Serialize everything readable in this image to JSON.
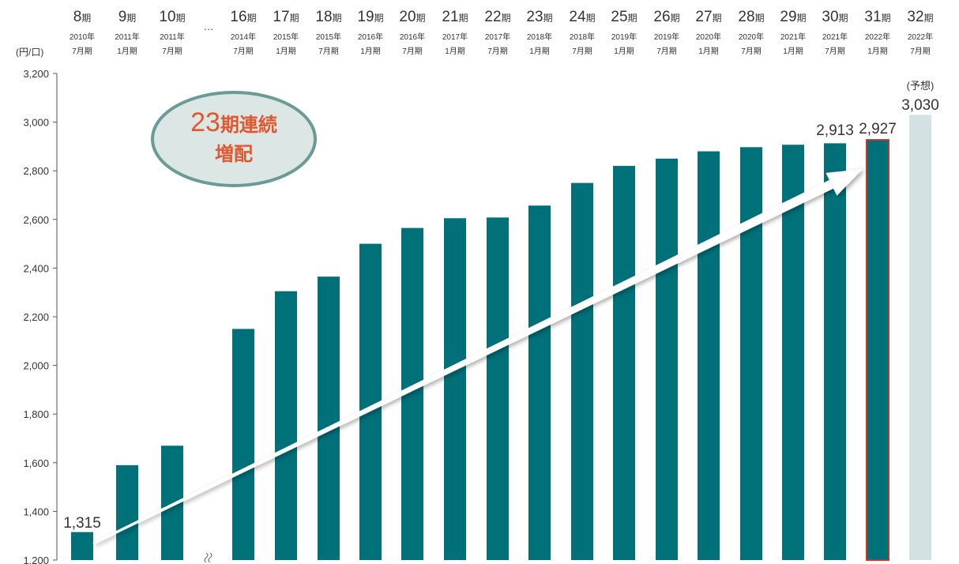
{
  "chart_data": {
    "type": "bar",
    "y_unit": "(円/口)",
    "ylim": [
      1200,
      3200
    ],
    "y_ticks": [
      "1,200",
      "1,400",
      "1,600",
      "1,800",
      "2,000",
      "2,200",
      "2,400",
      "2,600",
      "2,800",
      "3,000",
      "3,200"
    ],
    "y_tick_values": [
      1200,
      1400,
      1600,
      1800,
      2000,
      2200,
      2400,
      2600,
      2800,
      3000,
      3200
    ],
    "axis_break_ellipsis": "…",
    "categories": [
      {
        "num": "8",
        "suffix": "期",
        "year": "2010年",
        "month": "7月期"
      },
      {
        "num": "9",
        "suffix": "期",
        "year": "2011年",
        "month": "1月期"
      },
      {
        "num": "10",
        "suffix": "期",
        "year": "2011年",
        "month": "7月期"
      },
      {
        "num": "16",
        "suffix": "期",
        "year": "2014年",
        "month": "7月期"
      },
      {
        "num": "17",
        "suffix": "期",
        "year": "2015年",
        "month": "1月期"
      },
      {
        "num": "18",
        "suffix": "期",
        "year": "2015年",
        "month": "7月期"
      },
      {
        "num": "19",
        "suffix": "期",
        "year": "2016年",
        "month": "1月期"
      },
      {
        "num": "20",
        "suffix": "期",
        "year": "2016年",
        "month": "7月期"
      },
      {
        "num": "21",
        "suffix": "期",
        "year": "2017年",
        "month": "1月期"
      },
      {
        "num": "22",
        "suffix": "期",
        "year": "2017年",
        "month": "7月期"
      },
      {
        "num": "23",
        "suffix": "期",
        "year": "2018年",
        "month": "1月期"
      },
      {
        "num": "24",
        "suffix": "期",
        "year": "2018年",
        "month": "7月期"
      },
      {
        "num": "25",
        "suffix": "期",
        "year": "2019年",
        "month": "1月期"
      },
      {
        "num": "26",
        "suffix": "期",
        "year": "2019年",
        "month": "7月期"
      },
      {
        "num": "27",
        "suffix": "期",
        "year": "2020年",
        "month": "1月期"
      },
      {
        "num": "28",
        "suffix": "期",
        "year": "2020年",
        "month": "7月期"
      },
      {
        "num": "29",
        "suffix": "期",
        "year": "2021年",
        "month": "1月期"
      },
      {
        "num": "30",
        "suffix": "期",
        "year": "2021年",
        "month": "7月期"
      },
      {
        "num": "31",
        "suffix": "期",
        "year": "2022年",
        "month": "1月期"
      },
      {
        "num": "32",
        "suffix": "期",
        "year": "2022年",
        "month": "7月期"
      }
    ],
    "values": [
      1315,
      1590,
      1670,
      2150,
      2305,
      2365,
      2500,
      2565,
      2605,
      2608,
      2657,
      2750,
      2820,
      2850,
      2880,
      2897,
      2907,
      2913,
      2927,
      3030
    ],
    "data_labels": [
      {
        "index": 0,
        "text": "1,315"
      },
      {
        "index": 17,
        "text": "2,913"
      },
      {
        "index": 18,
        "text": "2,927"
      },
      {
        "index": 19,
        "text": "3,030"
      }
    ],
    "forecast_note": "(予想)",
    "highlight_index": 18,
    "forecast_index": 19,
    "annotation": {
      "number": "23",
      "text": "期連続",
      "line2": "増配"
    },
    "colors": {
      "bar": "#007079",
      "forecast_bar": "#d2e2e2",
      "highlight_border": "#c0392b",
      "badge_fill": "#dbe6e5",
      "badge_border": "#6a9b98",
      "badge_text": "#e4572e"
    }
  }
}
